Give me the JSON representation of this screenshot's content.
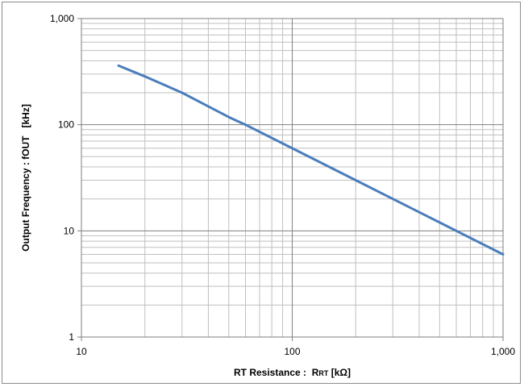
{
  "chart_data": {
    "type": "line",
    "title": "",
    "xlabel": "RT Resistance :  R",
    "xlabel_sub": "RT",
    "xlabel_unit": " [kΩ]",
    "ylabel": "Output Frequency : fOUT   [kHz]",
    "x_scale": "log",
    "y_scale": "log",
    "xlim": [
      10,
      1000
    ],
    "ylim": [
      1,
      1000
    ],
    "x_ticks": [
      10,
      100,
      1000
    ],
    "x_tick_labels": [
      "10",
      "100",
      "1,000"
    ],
    "y_ticks": [
      1,
      10,
      100,
      1000
    ],
    "y_tick_labels": [
      "1",
      "10",
      "100",
      "1,000"
    ],
    "grid": true,
    "legend": "none",
    "series": [
      {
        "color": "#4a7ebb",
        "x": [
          15,
          20,
          30,
          50,
          60,
          100,
          200,
          300,
          500,
          600,
          1000
        ],
        "y": [
          360,
          285,
          200,
          118,
          100,
          60,
          30,
          20,
          12,
          10,
          6
        ]
      }
    ]
  }
}
